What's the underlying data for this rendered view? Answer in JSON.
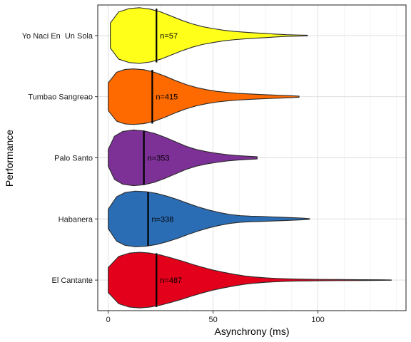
{
  "chart_data": {
    "type": "violin",
    "orientation": "horizontal",
    "xlabel": "Asynchrony (ms)",
    "ylabel": "Performance",
    "xlim": [
      -5,
      142
    ],
    "x_ticks": [
      0,
      50,
      100
    ],
    "x_tick_labels": [
      "0",
      "50",
      "100"
    ],
    "grid": true,
    "categories": [
      "El Cantante",
      "Habanera",
      "Palo Santo",
      "Tumbao Sangreao",
      "Yo Naci En  Un Sola"
    ],
    "series": [
      {
        "category": "El Cantante",
        "color": "#E3001B",
        "median": 23,
        "n_label": "n=487",
        "range": [
          0,
          135
        ],
        "density": [
          [
            0,
            0.45
          ],
          [
            5,
            0.85
          ],
          [
            10,
            0.97
          ],
          [
            15,
            1.0
          ],
          [
            20,
            0.97
          ],
          [
            25,
            0.9
          ],
          [
            30,
            0.8
          ],
          [
            35,
            0.69
          ],
          [
            40,
            0.57
          ],
          [
            45,
            0.46
          ],
          [
            50,
            0.36
          ],
          [
            55,
            0.28
          ],
          [
            60,
            0.21
          ],
          [
            65,
            0.15
          ],
          [
            70,
            0.11
          ],
          [
            75,
            0.08
          ],
          [
            80,
            0.06
          ],
          [
            85,
            0.045
          ],
          [
            90,
            0.035
          ],
          [
            95,
            0.03
          ],
          [
            100,
            0.025
          ],
          [
            110,
            0.02
          ],
          [
            120,
            0.015
          ],
          [
            130,
            0.01
          ],
          [
            135,
            0.006
          ]
        ]
      },
      {
        "category": "Habanera",
        "color": "#2B6DB5",
        "median": 19,
        "n_label": "n=338",
        "range": [
          0,
          96
        ],
        "density": [
          [
            0,
            0.35
          ],
          [
            4,
            0.8
          ],
          [
            8,
            0.95
          ],
          [
            13,
            1.0
          ],
          [
            18,
            0.98
          ],
          [
            23,
            0.92
          ],
          [
            28,
            0.82
          ],
          [
            33,
            0.7
          ],
          [
            38,
            0.56
          ],
          [
            43,
            0.43
          ],
          [
            48,
            0.32
          ],
          [
            53,
            0.23
          ],
          [
            58,
            0.16
          ],
          [
            63,
            0.12
          ],
          [
            68,
            0.1
          ],
          [
            73,
            0.09
          ],
          [
            78,
            0.075
          ],
          [
            83,
            0.06
          ],
          [
            88,
            0.045
          ],
          [
            93,
            0.03
          ],
          [
            96,
            0.01
          ]
        ]
      },
      {
        "category": "Palo Santo",
        "color": "#7D3196",
        "median": 17,
        "n_label": "n=353",
        "range": [
          0,
          71
        ],
        "density": [
          [
            0,
            0.3
          ],
          [
            3,
            0.78
          ],
          [
            7,
            0.95
          ],
          [
            12,
            1.0
          ],
          [
            17,
            0.97
          ],
          [
            22,
            0.88
          ],
          [
            27,
            0.74
          ],
          [
            32,
            0.58
          ],
          [
            37,
            0.42
          ],
          [
            42,
            0.3
          ],
          [
            47,
            0.22
          ],
          [
            52,
            0.16
          ],
          [
            57,
            0.11
          ],
          [
            62,
            0.08
          ],
          [
            66,
            0.06
          ],
          [
            71,
            0.04
          ]
        ]
      },
      {
        "category": "Tumbao Sangreao",
        "color": "#FF6A00",
        "median": 21,
        "n_label": "n=415",
        "range": [
          0,
          91
        ],
        "density": [
          [
            0,
            0.5
          ],
          [
            4,
            0.88
          ],
          [
            8,
            0.98
          ],
          [
            12,
            1.0
          ],
          [
            17,
            0.97
          ],
          [
            22,
            0.88
          ],
          [
            27,
            0.74
          ],
          [
            32,
            0.58
          ],
          [
            37,
            0.44
          ],
          [
            42,
            0.33
          ],
          [
            47,
            0.25
          ],
          [
            52,
            0.19
          ],
          [
            57,
            0.15
          ],
          [
            62,
            0.12
          ],
          [
            67,
            0.1
          ],
          [
            72,
            0.08
          ],
          [
            77,
            0.065
          ],
          [
            82,
            0.05
          ],
          [
            87,
            0.035
          ],
          [
            91,
            0.02
          ]
        ]
      },
      {
        "category": "Yo Naci En  Un Sola",
        "color": "#FFFF1A",
        "median": 23,
        "n_label": "n=57",
        "range": [
          1,
          95
        ],
        "density": [
          [
            1,
            0.45
          ],
          [
            5,
            0.85
          ],
          [
            10,
            0.97
          ],
          [
            15,
            1.0
          ],
          [
            20,
            0.95
          ],
          [
            25,
            0.85
          ],
          [
            30,
            0.7
          ],
          [
            35,
            0.55
          ],
          [
            40,
            0.42
          ],
          [
            45,
            0.32
          ],
          [
            50,
            0.25
          ],
          [
            55,
            0.19
          ],
          [
            60,
            0.15
          ],
          [
            65,
            0.12
          ],
          [
            70,
            0.095
          ],
          [
            75,
            0.075
          ],
          [
            80,
            0.05
          ],
          [
            85,
            0.03
          ],
          [
            90,
            0.02
          ],
          [
            95,
            0.012
          ]
        ]
      }
    ]
  }
}
